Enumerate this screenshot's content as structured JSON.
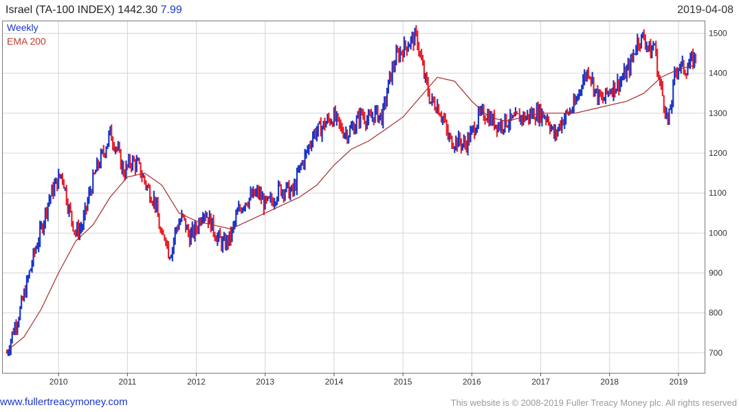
{
  "header": {
    "title": "Israel (TA-100 INDEX) 1442.30",
    "change": "7.99",
    "date": "2019-04-08"
  },
  "legend": {
    "weekly": "Weekly",
    "ema": "EMA 200"
  },
  "footer": {
    "link": "www.fullertreacymoney.com",
    "copyright": "This website is © 2008-2019 Fuller Treacy Money plc. All rights reserved"
  },
  "colors": {
    "up": "#1a37c8",
    "down": "#e8202a",
    "ema": "#a52a2a",
    "grid": "#d4d4d4",
    "accent": "#1a37c8"
  },
  "chart_data": {
    "type": "line",
    "title": "Israel (TA-100 INDEX) 1442.30",
    "ylim": [
      650,
      1530
    ],
    "xlim": [
      2009.25,
      2019.3
    ],
    "y_ticks": [
      700,
      800,
      900,
      1000,
      1100,
      1200,
      1300,
      1400,
      1500
    ],
    "x_ticks": [
      2010,
      2011,
      2012,
      2013,
      2014,
      2015,
      2016,
      2017,
      2018,
      2019
    ],
    "grid": true,
    "series": [
      {
        "name": "Weekly",
        "x": [
          2009.25,
          2009.35,
          2009.45,
          2009.55,
          2009.65,
          2009.75,
          2009.85,
          2009.95,
          2010.05,
          2010.15,
          2010.25,
          2010.35,
          2010.45,
          2010.55,
          2010.65,
          2010.75,
          2010.85,
          2010.95,
          2011.05,
          2011.15,
          2011.2,
          2011.3,
          2011.4,
          2011.5,
          2011.55,
          2011.6,
          2011.65,
          2011.7,
          2011.8,
          2011.9,
          2012.0,
          2012.1,
          2012.2,
          2012.3,
          2012.4,
          2012.5,
          2012.6,
          2012.7,
          2012.8,
          2012.9,
          2013.0,
          2013.1,
          2013.2,
          2013.3,
          2013.4,
          2013.5,
          2013.6,
          2013.7,
          2013.8,
          2013.9,
          2014.0,
          2014.1,
          2014.2,
          2014.3,
          2014.4,
          2014.5,
          2014.6,
          2014.7,
          2014.8,
          2014.9,
          2015.0,
          2015.1,
          2015.2,
          2015.3,
          2015.4,
          2015.5,
          2015.6,
          2015.65,
          2015.7,
          2015.8,
          2015.9,
          2016.0,
          2016.1,
          2016.2,
          2016.3,
          2016.4,
          2016.5,
          2016.6,
          2016.7,
          2016.8,
          2016.9,
          2017.0,
          2017.1,
          2017.2,
          2017.3,
          2017.4,
          2017.5,
          2017.6,
          2017.7,
          2017.8,
          2017.9,
          2018.0,
          2018.1,
          2018.2,
          2018.3,
          2018.4,
          2018.5,
          2018.6,
          2018.65,
          2018.7,
          2018.8,
          2018.85,
          2018.9,
          2018.95,
          2019.0,
          2019.1,
          2019.2,
          2019.25
        ],
        "values": [
          700,
          760,
          810,
          880,
          950,
          1010,
          1080,
          1120,
          1150,
          1060,
          1000,
          1020,
          1100,
          1160,
          1200,
          1250,
          1210,
          1150,
          1180,
          1170,
          1150,
          1110,
          1080,
          980,
          1000,
          950,
          960,
          1010,
          1040,
          990,
          1010,
          1060,
          1030,
          990,
          970,
          990,
          1050,
          1080,
          1090,
          1100,
          1070,
          1080,
          1110,
          1110,
          1100,
          1160,
          1200,
          1250,
          1260,
          1280,
          1290,
          1260,
          1250,
          1270,
          1300,
          1280,
          1300,
          1290,
          1380,
          1440,
          1460,
          1480,
          1490,
          1400,
          1330,
          1320,
          1280,
          1240,
          1230,
          1230,
          1220,
          1250,
          1290,
          1300,
          1280,
          1270,
          1280,
          1280,
          1290,
          1290,
          1300,
          1300,
          1290,
          1240,
          1280,
          1300,
          1320,
          1380,
          1410,
          1350,
          1330,
          1360,
          1370,
          1390,
          1420,
          1480,
          1490,
          1450,
          1480,
          1400,
          1320,
          1270,
          1330,
          1400,
          1420,
          1410,
          1430,
          1442.3
        ]
      },
      {
        "name": "EMA 200",
        "x": [
          2009.25,
          2009.5,
          2009.75,
          2010.0,
          2010.25,
          2010.5,
          2010.75,
          2011.0,
          2011.25,
          2011.5,
          2011.75,
          2012.0,
          2012.25,
          2012.5,
          2012.75,
          2013.0,
          2013.25,
          2013.5,
          2013.75,
          2014.0,
          2014.25,
          2014.5,
          2014.75,
          2015.0,
          2015.25,
          2015.5,
          2015.75,
          2016.0,
          2016.25,
          2016.5,
          2016.75,
          2017.0,
          2017.25,
          2017.5,
          2017.75,
          2018.0,
          2018.25,
          2018.5,
          2018.75,
          2019.0,
          2019.25
        ],
        "values": [
          705,
          740,
          810,
          900,
          980,
          1020,
          1090,
          1140,
          1150,
          1120,
          1050,
          1030,
          1020,
          1010,
          1030,
          1050,
          1070,
          1090,
          1120,
          1170,
          1210,
          1230,
          1260,
          1290,
          1340,
          1390,
          1380,
          1330,
          1290,
          1280,
          1290,
          1300,
          1300,
          1300,
          1310,
          1320,
          1330,
          1350,
          1390,
          1410,
          1420
        ]
      }
    ]
  }
}
